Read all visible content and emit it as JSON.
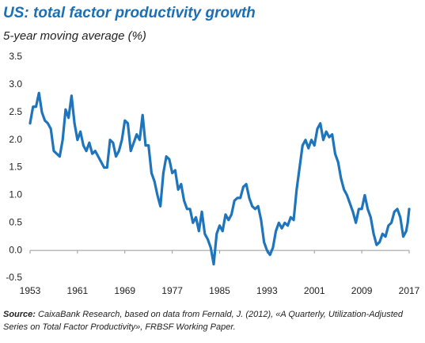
{
  "chart_data": {
    "type": "line",
    "title": "US: total factor productivity growth",
    "subtitle": "5-year moving average (%)",
    "source_label": "Source:",
    "source_line1": "CaixaBank Research, based on data from Fernald, J. (2012), «A Quarterly, Utilization-Adjusted",
    "source_line2": "Series on Total Factor Productivity», FRBSF Working Paper.",
    "color": "#1f75bc",
    "x": [
      1953,
      1953.5,
      1954,
      1954.5,
      1955,
      1955.5,
      1956,
      1956.5,
      1957,
      1957.5,
      1958,
      1958.5,
      1959,
      1959.5,
      1960,
      1960.5,
      1961,
      1961.5,
      1962,
      1962.5,
      1963,
      1963.5,
      1964,
      1964.5,
      1965,
      1965.5,
      1966,
      1966.5,
      1967,
      1967.5,
      1968,
      1968.5,
      1969,
      1969.5,
      1970,
      1970.5,
      1971,
      1971.5,
      1972,
      1972.5,
      1973,
      1973.5,
      1974,
      1974.5,
      1975,
      1975.5,
      1976,
      1976.5,
      1977,
      1977.5,
      1978,
      1978.5,
      1979,
      1979.5,
      1980,
      1980.5,
      1981,
      1981.5,
      1982,
      1982.5,
      1983,
      1983.5,
      1984,
      1984.5,
      1985,
      1985.5,
      1986,
      1986.5,
      1987,
      1987.5,
      1988,
      1988.5,
      1989,
      1989.5,
      1990,
      1990.5,
      1991,
      1991.5,
      1992,
      1992.5,
      1993,
      1993.5,
      1994,
      1994.5,
      1995,
      1995.5,
      1996,
      1996.5,
      1997,
      1997.5,
      1998,
      1998.5,
      1999,
      1999.5,
      2000,
      2000.5,
      2001,
      2001.5,
      2002,
      2002.5,
      2003,
      2003.5,
      2004,
      2004.5,
      2005,
      2005.5,
      2006,
      2006.5,
      2007,
      2007.5,
      2008,
      2008.5,
      2009,
      2009.5,
      2010,
      2010.5,
      2011,
      2011.5,
      2012,
      2012.5,
      2013,
      2013.5,
      2014,
      2014.5,
      2015,
      2015.5,
      2016,
      2016.5,
      2016.75,
      2017
    ],
    "values": [
      2.3,
      2.6,
      2.6,
      2.85,
      2.5,
      2.35,
      2.3,
      2.2,
      1.8,
      1.75,
      1.7,
      2.0,
      2.55,
      2.4,
      2.8,
      2.3,
      2.0,
      2.15,
      1.9,
      1.8,
      1.95,
      1.75,
      1.8,
      1.7,
      1.6,
      1.5,
      1.5,
      2.0,
      1.95,
      1.7,
      1.8,
      2.0,
      2.35,
      2.3,
      1.8,
      1.95,
      2.1,
      2.0,
      2.45,
      1.9,
      1.9,
      1.4,
      1.25,
      1.0,
      0.8,
      1.4,
      1.7,
      1.65,
      1.4,
      1.45,
      1.1,
      1.2,
      0.9,
      0.75,
      0.75,
      0.5,
      0.6,
      0.35,
      0.7,
      0.3,
      0.2,
      0.05,
      -0.25,
      0.3,
      0.45,
      0.35,
      0.65,
      0.55,
      0.65,
      0.9,
      0.95,
      0.95,
      1.15,
      1.2,
      0.95,
      0.8,
      0.75,
      0.8,
      0.55,
      0.15,
      0.0,
      -0.08,
      0.05,
      0.35,
      0.5,
      0.4,
      0.5,
      0.45,
      0.6,
      0.55,
      1.1,
      1.5,
      1.9,
      2.0,
      1.85,
      2.0,
      1.9,
      2.2,
      2.3,
      2.0,
      2.15,
      2.05,
      2.1,
      1.75,
      1.6,
      1.3,
      1.1,
      1.0,
      0.85,
      0.7,
      0.5,
      0.75,
      0.75,
      1.0,
      0.75,
      0.6,
      0.3,
      0.1,
      0.15,
      0.3,
      0.25,
      0.45,
      0.5,
      0.7,
      0.75,
      0.6,
      0.25,
      0.35,
      0.5,
      0.75
    ],
    "xlim": [
      1953,
      2017
    ],
    "xticks": [
      1953,
      1961,
      1969,
      1977,
      1985,
      1993,
      2001,
      2009,
      2017
    ],
    "ylim": [
      -0.5,
      3.5
    ],
    "yticks": [
      {
        "value": 3.5,
        "label": "3.5"
      },
      {
        "value": 3,
        "label": "3.0"
      },
      {
        "value": 2.5,
        "label": "2.5"
      },
      {
        "value": 2,
        "label": "2.0"
      },
      {
        "value": 1.5,
        "label": "1.5"
      },
      {
        "value": 1,
        "label": "1.0"
      },
      {
        "value": 0.5,
        "label": "0.5"
      },
      {
        "value": 0,
        "label": "0.0"
      },
      {
        "value": -0.5,
        "label": "-0.5"
      }
    ]
  }
}
